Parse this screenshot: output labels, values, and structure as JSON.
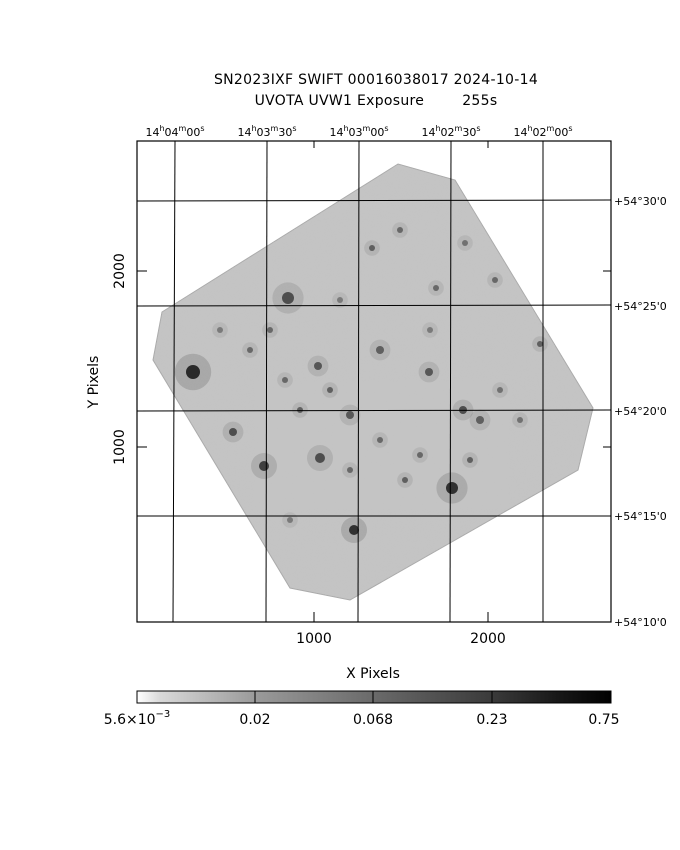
{
  "title_line1": "SN2023IXF SWIFT 00016038017 2024-10-14",
  "title_line2": "UVOTA UVW1 Exposure        255s",
  "ra_ticks": [
    {
      "h": "14",
      "m": "04",
      "s": "00"
    },
    {
      "h": "14",
      "m": "03",
      "s": "30"
    },
    {
      "h": "14",
      "m": "03",
      "s": "00"
    },
    {
      "h": "14",
      "m": "02",
      "s": "30"
    },
    {
      "h": "14",
      "m": "02",
      "s": "00"
    }
  ],
  "dec_ticks": [
    "+54°30'0",
    "+54°25'0",
    "+54°20'0",
    "+54°15'0",
    "+54°10'0"
  ],
  "x_ticks": [
    "1000",
    "2000"
  ],
  "y_ticks": [
    "2000",
    "1000"
  ],
  "x_label": "X Pixels",
  "y_label": "Y Pixels",
  "colorbar": {
    "min_mantissa": "5.6×10",
    "min_exponent": "−3",
    "labels": [
      "0.02",
      "0.068",
      "0.23",
      "0.75"
    ]
  },
  "colors": {
    "ink": "#000000",
    "background": "#ffffff"
  }
}
